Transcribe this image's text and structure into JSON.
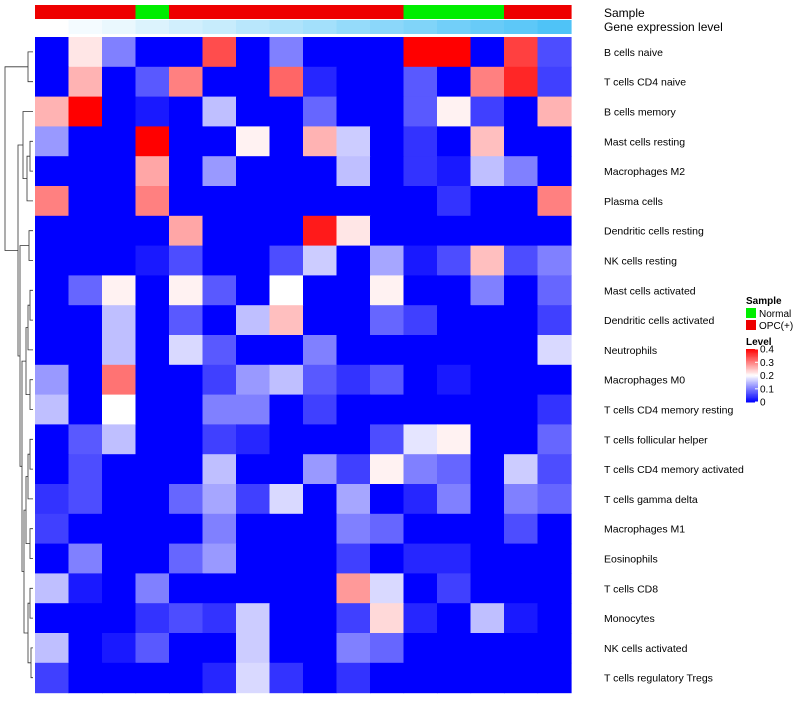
{
  "chart_data": {
    "type": "heatmap",
    "title": "",
    "annotation_tracks": [
      {
        "label": "Sample",
        "values": [
          "OPC(+)",
          "OPC(+)",
          "OPC(+)",
          "Normal",
          "OPC(+)",
          "OPC(+)",
          "OPC(+)",
          "OPC(+)",
          "OPC(+)",
          "OPC(+)",
          "OPC(+)",
          "Normal",
          "Normal",
          "Normal",
          "OPC(+)",
          "OPC(+)"
        ]
      },
      {
        "label": "Gene expression level",
        "values": [
          0.0,
          0.03,
          0.06,
          0.1,
          0.13,
          0.16,
          0.2,
          0.23,
          0.26,
          0.3,
          0.33,
          0.36,
          0.4,
          0.43,
          0.46,
          0.5
        ]
      }
    ],
    "rows": [
      "B cells naive",
      "T cells CD4 naive",
      "B cells memory",
      "Mast cells resting",
      "Macrophages M2",
      "Plasma cells",
      "Dendritic cells resting",
      "NK cells resting",
      "Mast cells activated",
      "Dendritic cells activated",
      "Neutrophils",
      "Macrophages M0",
      "T cells CD4 memory resting",
      "T cells follicular helper",
      "T cells CD4 memory activated",
      "T cells gamma delta",
      "Macrophages M1",
      "Eosinophils",
      "T cells CD8",
      "Monocytes",
      "NK cells activated",
      "T cells regulatory  Tregs"
    ],
    "values": [
      [
        0,
        0.22,
        0.1,
        0,
        0,
        0.34,
        0,
        0.1,
        0,
        0,
        0,
        0.4,
        0.4,
        0,
        0.35,
        0.06
      ],
      [
        0,
        0.26,
        0,
        0.07,
        0.3,
        0,
        0,
        0.32,
        0.03,
        0,
        0,
        0.07,
        0,
        0.3,
        0.37,
        0.05
      ],
      [
        0.26,
        0.4,
        0,
        0.02,
        0,
        0.15,
        0,
        0,
        0.08,
        0,
        0,
        0.07,
        0.21,
        0.05,
        0,
        0.26
      ],
      [
        0.12,
        0,
        0,
        0.4,
        0,
        0,
        0.21,
        0,
        0.26,
        0.16,
        0,
        0.04,
        0,
        0.25,
        0,
        0
      ],
      [
        0,
        0,
        0,
        0.27,
        0,
        0.12,
        0,
        0,
        0,
        0.15,
        0,
        0.04,
        0.02,
        0.15,
        0.1,
        0
      ],
      [
        0.3,
        0,
        0,
        0.3,
        0,
        0,
        0,
        0,
        0,
        0,
        0,
        0,
        0.04,
        0,
        0,
        0.3
      ],
      [
        0,
        0,
        0,
        0,
        0.27,
        0,
        0,
        0,
        0.38,
        0.22,
        0,
        0,
        0,
        0,
        0,
        0
      ],
      [
        0,
        0,
        0,
        0.02,
        0.06,
        0,
        0,
        0.06,
        0.16,
        0,
        0.13,
        0.02,
        0.06,
        0.25,
        0.06,
        0.1
      ],
      [
        0,
        0.08,
        0.21,
        0,
        0.21,
        0.07,
        0,
        0.2,
        0,
        0,
        0.21,
        0,
        0,
        0.1,
        0,
        0.08
      ],
      [
        0,
        0,
        0.15,
        0,
        0.07,
        0,
        0.15,
        0.25,
        0,
        0,
        0.08,
        0.05,
        0,
        0,
        0,
        0.05
      ],
      [
        0,
        0,
        0.15,
        0,
        0.17,
        0.07,
        0,
        0,
        0.1,
        0,
        0,
        0,
        0,
        0,
        0,
        0.17
      ],
      [
        0.12,
        0,
        0.31,
        0,
        0,
        0.05,
        0.12,
        0.15,
        0.07,
        0.04,
        0.07,
        0,
        0.02,
        0,
        0,
        0
      ],
      [
        0.15,
        0,
        0.2,
        0,
        0,
        0.1,
        0.1,
        0,
        0.05,
        0,
        0,
        0,
        0,
        0,
        0,
        0.04
      ],
      [
        0,
        0.07,
        0.15,
        0,
        0,
        0.05,
        0.03,
        0,
        0,
        0,
        0.06,
        0.18,
        0.21,
        0,
        0,
        0.08
      ],
      [
        0,
        0.06,
        0,
        0,
        0,
        0.15,
        0,
        0,
        0.12,
        0.05,
        0.21,
        0.1,
        0.08,
        0,
        0.16,
        0.06
      ],
      [
        0.04,
        0.06,
        0,
        0,
        0.08,
        0.13,
        0.05,
        0.17,
        0,
        0.13,
        0,
        0.03,
        0.1,
        0,
        0.1,
        0.08
      ],
      [
        0.05,
        0,
        0,
        0,
        0,
        0.1,
        0,
        0,
        0,
        0.1,
        0.08,
        0,
        0,
        0,
        0.06,
        0
      ],
      [
        0,
        0.1,
        0,
        0,
        0.08,
        0.12,
        0,
        0,
        0,
        0.05,
        0,
        0.03,
        0.03,
        0,
        0,
        0
      ],
      [
        0.15,
        0.02,
        0,
        0.1,
        0,
        0,
        0,
        0,
        0,
        0.28,
        0.17,
        0,
        0.05,
        0,
        0,
        0
      ],
      [
        0,
        0,
        0,
        0.04,
        0.06,
        0.04,
        0.16,
        0,
        0,
        0.05,
        0.23,
        0.03,
        0,
        0.15,
        0.02,
        0
      ],
      [
        0.15,
        0,
        0.02,
        0.07,
        0,
        0,
        0.16,
        0,
        0,
        0.1,
        0.08,
        0,
        0,
        0,
        0,
        0
      ],
      [
        0.05,
        0,
        0,
        0,
        0,
        0.03,
        0.17,
        0.04,
        0,
        0.04,
        0,
        0,
        0,
        0,
        0,
        0
      ]
    ],
    "legends": [
      {
        "title": "Sample",
        "entries": [
          {
            "label": "Normal",
            "color": "#00ee00"
          },
          {
            "label": "OPC(+)",
            "color": "#ee0000"
          }
        ]
      },
      {
        "title": "Level",
        "range": [
          0,
          0.4
        ],
        "ticks": [
          {
            "value": 0.4,
            "label": "0.4"
          },
          {
            "value": 0.3,
            "label": "0.3"
          },
          {
            "value": 0.2,
            "label": "0.2"
          },
          {
            "value": 0.1,
            "label": "0.1"
          },
          {
            "value": 0,
            "label": "0"
          }
        ]
      }
    ],
    "legend_placement": "right",
    "colors": {
      "low": "#0000ff",
      "mid": "#ffffff",
      "high": "#ff0000",
      "Normal": "#00ee00",
      "OPC(+)": "#ee0000",
      "expression_low": "#ffffff",
      "expression_high": "#4fc3f7"
    }
  }
}
